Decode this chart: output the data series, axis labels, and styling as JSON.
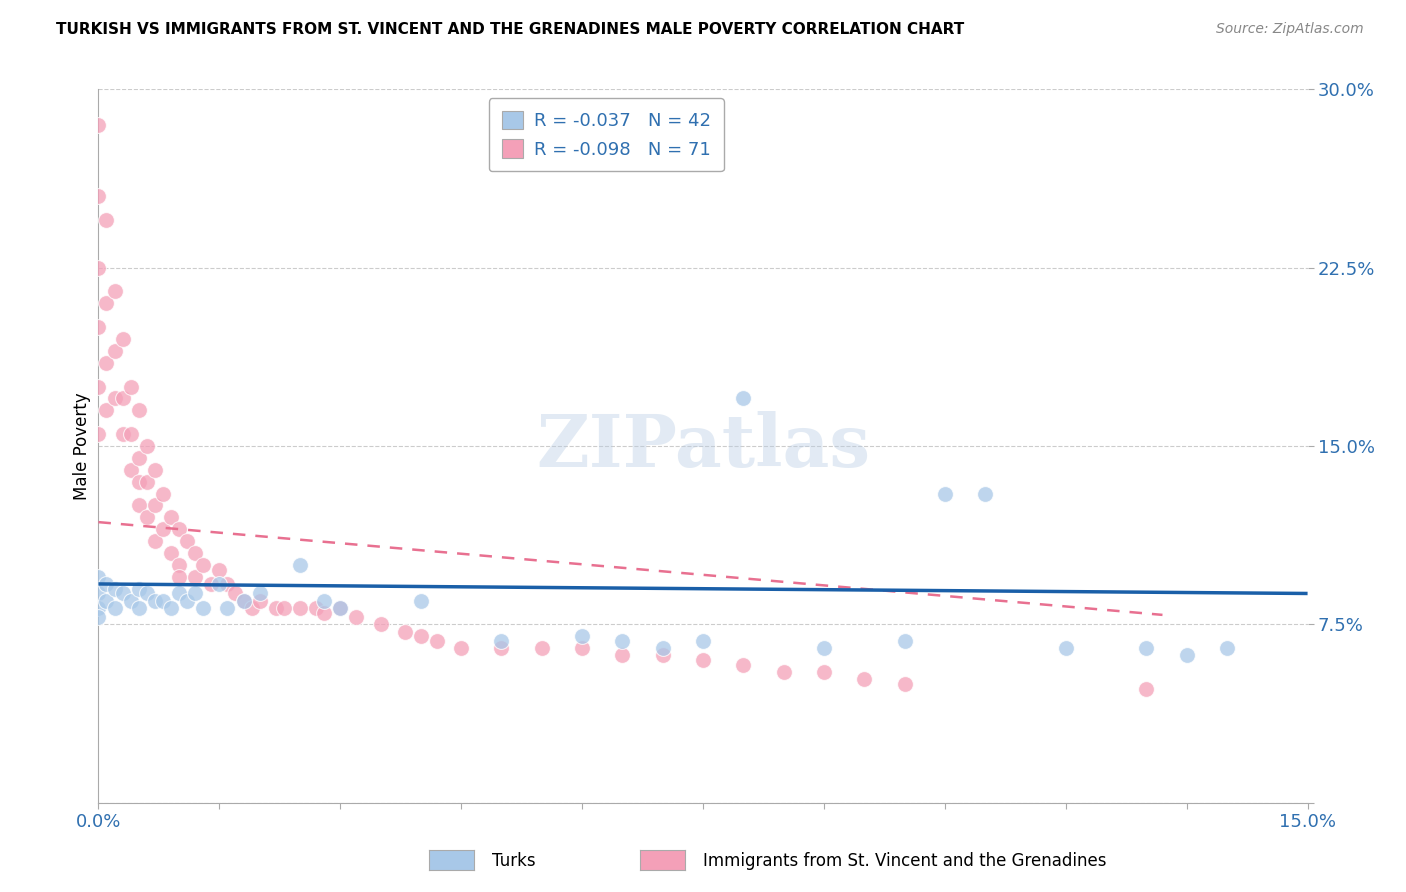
{
  "title": "TURKISH VS IMMIGRANTS FROM ST. VINCENT AND THE GRENADINES MALE POVERTY CORRELATION CHART",
  "source": "Source: ZipAtlas.com",
  "ylabel": "Male Poverty",
  "turks_R": "-0.037",
  "turks_N": "42",
  "svg_R": "-0.098",
  "svg_N": "71",
  "blue_color": "#a8c8e8",
  "pink_color": "#f4a0b8",
  "blue_line_color": "#1a5fa8",
  "pink_line_color": "#e87090",
  "xmin": 0.0,
  "xmax": 0.15,
  "ymin": 0.0,
  "ymax": 0.3,
  "watermark": "ZIPatlas",
  "grid_color": "#cccccc",
  "turks_x": [
    0.0,
    0.0,
    0.0,
    0.0,
    0.001,
    0.001,
    0.002,
    0.002,
    0.003,
    0.004,
    0.005,
    0.005,
    0.006,
    0.007,
    0.008,
    0.009,
    0.01,
    0.011,
    0.012,
    0.013,
    0.015,
    0.016,
    0.018,
    0.02,
    0.025,
    0.028,
    0.03,
    0.04,
    0.05,
    0.06,
    0.065,
    0.07,
    0.075,
    0.08,
    0.09,
    0.1,
    0.105,
    0.11,
    0.12,
    0.13,
    0.135,
    0.14
  ],
  "turks_y": [
    0.095,
    0.088,
    0.082,
    0.078,
    0.092,
    0.085,
    0.09,
    0.082,
    0.088,
    0.085,
    0.09,
    0.082,
    0.088,
    0.085,
    0.085,
    0.082,
    0.088,
    0.085,
    0.088,
    0.082,
    0.092,
    0.082,
    0.085,
    0.088,
    0.1,
    0.085,
    0.082,
    0.085,
    0.068,
    0.07,
    0.068,
    0.065,
    0.068,
    0.17,
    0.065,
    0.068,
    0.13,
    0.13,
    0.065,
    0.065,
    0.062,
    0.065
  ],
  "svg_x": [
    0.0,
    0.0,
    0.0,
    0.0,
    0.0,
    0.0,
    0.001,
    0.001,
    0.001,
    0.001,
    0.002,
    0.002,
    0.002,
    0.003,
    0.003,
    0.003,
    0.004,
    0.004,
    0.004,
    0.005,
    0.005,
    0.005,
    0.005,
    0.006,
    0.006,
    0.006,
    0.007,
    0.007,
    0.007,
    0.008,
    0.008,
    0.009,
    0.009,
    0.01,
    0.01,
    0.01,
    0.011,
    0.012,
    0.012,
    0.013,
    0.014,
    0.015,
    0.016,
    0.017,
    0.018,
    0.019,
    0.02,
    0.022,
    0.023,
    0.025,
    0.027,
    0.028,
    0.03,
    0.032,
    0.035,
    0.038,
    0.04,
    0.042,
    0.045,
    0.05,
    0.055,
    0.06,
    0.065,
    0.07,
    0.075,
    0.08,
    0.085,
    0.09,
    0.095,
    0.1,
    0.13
  ],
  "svg_y": [
    0.285,
    0.255,
    0.225,
    0.2,
    0.175,
    0.155,
    0.245,
    0.21,
    0.185,
    0.165,
    0.215,
    0.19,
    0.17,
    0.195,
    0.17,
    0.155,
    0.175,
    0.155,
    0.14,
    0.165,
    0.145,
    0.135,
    0.125,
    0.15,
    0.135,
    0.12,
    0.14,
    0.125,
    0.11,
    0.13,
    0.115,
    0.12,
    0.105,
    0.115,
    0.1,
    0.095,
    0.11,
    0.105,
    0.095,
    0.1,
    0.092,
    0.098,
    0.092,
    0.088,
    0.085,
    0.082,
    0.085,
    0.082,
    0.082,
    0.082,
    0.082,
    0.08,
    0.082,
    0.078,
    0.075,
    0.072,
    0.07,
    0.068,
    0.065,
    0.065,
    0.065,
    0.065,
    0.062,
    0.062,
    0.06,
    0.058,
    0.055,
    0.055,
    0.052,
    0.05,
    0.048
  ],
  "blue_trendline_x0": 0.0,
  "blue_trendline_x1": 0.15,
  "blue_trendline_y0": 0.092,
  "blue_trendline_y1": 0.088,
  "pink_trendline_x0": 0.0,
  "pink_trendline_x1": 0.132,
  "pink_trendline_y0": 0.118,
  "pink_trendline_y1": 0.079
}
